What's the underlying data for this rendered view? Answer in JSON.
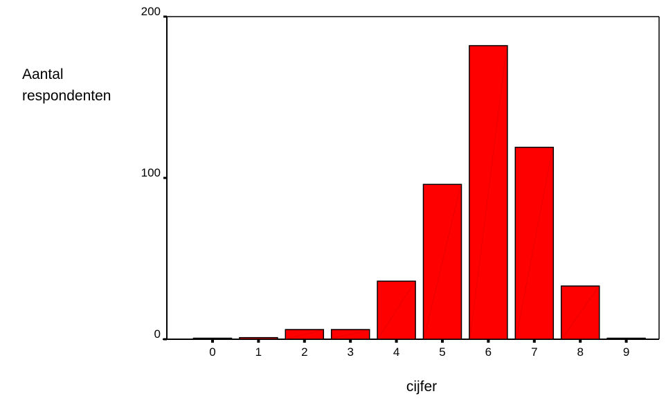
{
  "chart_data": {
    "type": "bar",
    "categories": [
      "0",
      "1",
      "2",
      "3",
      "4",
      "5",
      "6",
      "7",
      "8",
      "9"
    ],
    "values": [
      0,
      1,
      6,
      6,
      36,
      96,
      182,
      119,
      33,
      0
    ],
    "xlabel": "cijfer",
    "ylabel": [
      "Aantal",
      "respondenten"
    ],
    "yticks": [
      0,
      100,
      200
    ],
    "ylim": [
      0,
      200
    ],
    "grid": false,
    "legend": "none",
    "colors": {
      "bar_fill": "#ff0000",
      "bar_stroke": "#000000",
      "axis": "#000000"
    }
  }
}
